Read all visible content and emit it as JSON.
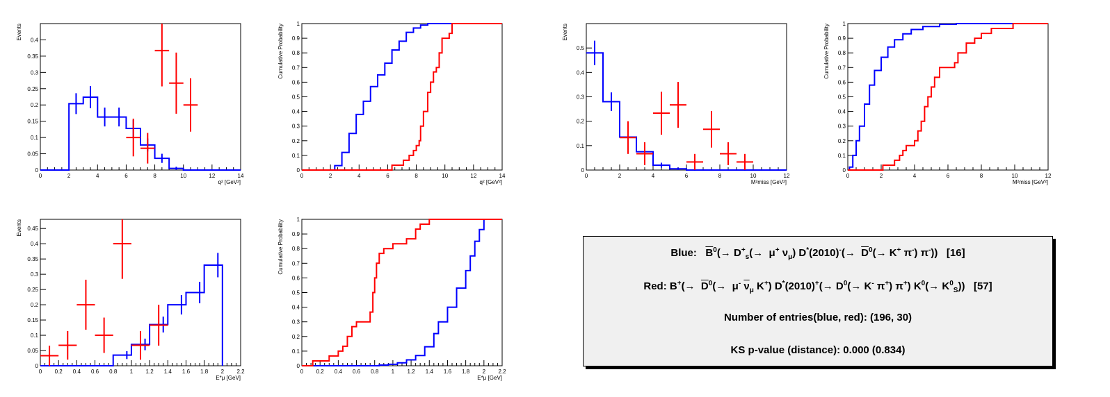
{
  "colors": {
    "blue": "#0000ff",
    "red": "#ff0000",
    "frame": "#000000",
    "box_bg": "#f0f0f0"
  },
  "chart_data": [
    {
      "type": "histogram",
      "ylabel": "Events",
      "xlabel": "q² [GeV²]",
      "xlim": [
        0,
        14
      ],
      "ylim": [
        0,
        0.45
      ],
      "xticks": [
        0,
        2,
        4,
        6,
        8,
        10,
        12,
        14
      ],
      "yticks": [
        0,
        0.05,
        0.1,
        0.15,
        0.2,
        0.25,
        0.3,
        0.35,
        0.4
      ],
      "series": [
        {
          "color": "blue",
          "style": "step",
          "bins": [
            0,
            1,
            2,
            3,
            4,
            5,
            6,
            7,
            8,
            9,
            10,
            11,
            12,
            13,
            14
          ],
          "values": [
            0,
            0,
            0.204,
            0.224,
            0.163,
            0.163,
            0.128,
            0.077,
            0.036,
            0.005,
            0,
            0,
            0,
            0
          ],
          "errors": [
            0,
            0,
            0.032,
            0.034,
            0.029,
            0.029,
            0.026,
            0.02,
            0.014,
            0.005,
            0,
            0,
            0,
            0
          ]
        },
        {
          "color": "red",
          "style": "errorbar",
          "points": [
            [
              6.5,
              0.1,
              0.058
            ],
            [
              7.5,
              0.067,
              0.047
            ],
            [
              8.5,
              0.367,
              0.11
            ],
            [
              9.5,
              0.267,
              0.094
            ],
            [
              10.5,
              0.2,
              0.082
            ]
          ],
          "xerr": 0.5
        }
      ]
    },
    {
      "type": "cdf",
      "ylabel": "Cumulative Probability",
      "xlabel": "q² [GeV²]",
      "xlim": [
        0,
        14
      ],
      "ylim": [
        0,
        1
      ],
      "xticks": [
        0,
        2,
        4,
        6,
        8,
        10,
        12,
        14
      ],
      "yticks": [
        0,
        0.1,
        0.2,
        0.3,
        0.4,
        0.5,
        0.6,
        0.7,
        0.8,
        0.9,
        1
      ],
      "series": [
        {
          "color": "blue",
          "points": [
            [
              2.1,
              0
            ],
            [
              2.3,
              0.03
            ],
            [
              2.8,
              0.12
            ],
            [
              3.3,
              0.25
            ],
            [
              3.8,
              0.38
            ],
            [
              4.3,
              0.47
            ],
            [
              4.8,
              0.57
            ],
            [
              5.3,
              0.65
            ],
            [
              5.8,
              0.73
            ],
            [
              6.3,
              0.82
            ],
            [
              6.8,
              0.88
            ],
            [
              7.3,
              0.94
            ],
            [
              7.8,
              0.97
            ],
            [
              8.3,
              0.99
            ],
            [
              8.8,
              1.0
            ],
            [
              14,
              1.0
            ]
          ]
        },
        {
          "color": "red",
          "points": [
            [
              0,
              0
            ],
            [
              6.1,
              0
            ],
            [
              6.3,
              0.033
            ],
            [
              7.1,
              0.067
            ],
            [
              7.5,
              0.1
            ],
            [
              7.8,
              0.133
            ],
            [
              8.0,
              0.167
            ],
            [
              8.2,
              0.2
            ],
            [
              8.3,
              0.3
            ],
            [
              8.5,
              0.4
            ],
            [
              8.8,
              0.53
            ],
            [
              9.0,
              0.6
            ],
            [
              9.2,
              0.67
            ],
            [
              9.4,
              0.7
            ],
            [
              9.6,
              0.8
            ],
            [
              9.8,
              0.9
            ],
            [
              10.3,
              0.933
            ],
            [
              10.5,
              1.0
            ],
            [
              14,
              1.0
            ]
          ]
        }
      ]
    },
    {
      "type": "histogram",
      "ylabel": "Events",
      "xlabel": "M²miss [GeV²]",
      "xlim": [
        0,
        12
      ],
      "ylim": [
        0,
        0.6
      ],
      "xticks": [
        0,
        2,
        4,
        6,
        8,
        10,
        12
      ],
      "yticks": [
        0,
        0.1,
        0.2,
        0.3,
        0.4,
        0.5
      ],
      "series": [
        {
          "color": "blue",
          "style": "step",
          "bins": [
            0,
            1,
            2,
            3,
            4,
            5,
            6,
            7,
            8,
            9,
            10,
            11,
            12
          ],
          "values": [
            0.48,
            0.28,
            0.135,
            0.075,
            0.02,
            0.005,
            0,
            0,
            0,
            0,
            0,
            0
          ],
          "errors": [
            0.05,
            0.038,
            0.026,
            0.02,
            0.01,
            0.005,
            0,
            0,
            0,
            0,
            0,
            0
          ]
        },
        {
          "color": "red",
          "style": "errorbar",
          "points": [
            [
              2.5,
              0.133,
              0.067
            ],
            [
              3.5,
              0.067,
              0.047
            ],
            [
              4.5,
              0.233,
              0.088
            ],
            [
              5.5,
              0.267,
              0.094
            ],
            [
              6.5,
              0.033,
              0.033
            ],
            [
              7.5,
              0.167,
              0.075
            ],
            [
              8.5,
              0.067,
              0.047
            ],
            [
              9.5,
              0.033,
              0.033
            ]
          ],
          "xerr": 0.5
        }
      ]
    },
    {
      "type": "cdf",
      "ylabel": "Cumulative Probability",
      "xlabel": "M²miss [GeV²]",
      "xlim": [
        0,
        12
      ],
      "ylim": [
        0,
        1
      ],
      "xticks": [
        0,
        2,
        4,
        6,
        8,
        10,
        12
      ],
      "yticks": [
        0,
        0.1,
        0.2,
        0.3,
        0.4,
        0.5,
        0.6,
        0.7,
        0.8,
        0.9,
        1
      ],
      "series": [
        {
          "color": "blue",
          "points": [
            [
              0,
              0
            ],
            [
              0.1,
              0.02
            ],
            [
              0.3,
              0.1
            ],
            [
              0.5,
              0.2
            ],
            [
              0.7,
              0.3
            ],
            [
              1.0,
              0.45
            ],
            [
              1.3,
              0.58
            ],
            [
              1.6,
              0.68
            ],
            [
              2.0,
              0.77
            ],
            [
              2.4,
              0.84
            ],
            [
              2.8,
              0.89
            ],
            [
              3.3,
              0.93
            ],
            [
              3.8,
              0.96
            ],
            [
              4.5,
              0.98
            ],
            [
              5.5,
              0.995
            ],
            [
              6.5,
              1.0
            ],
            [
              12,
              1.0
            ]
          ]
        },
        {
          "color": "red",
          "points": [
            [
              0,
              0
            ],
            [
              2.1,
              0
            ],
            [
              2.1,
              0.033
            ],
            [
              2.8,
              0.067
            ],
            [
              3.1,
              0.1
            ],
            [
              3.3,
              0.133
            ],
            [
              3.5,
              0.167
            ],
            [
              4.0,
              0.2
            ],
            [
              4.2,
              0.267
            ],
            [
              4.4,
              0.333
            ],
            [
              4.6,
              0.433
            ],
            [
              4.8,
              0.5
            ],
            [
              5.0,
              0.567
            ],
            [
              5.2,
              0.633
            ],
            [
              5.5,
              0.7
            ],
            [
              6.4,
              0.733
            ],
            [
              6.6,
              0.8
            ],
            [
              7.1,
              0.867
            ],
            [
              7.6,
              0.9
            ],
            [
              8.0,
              0.933
            ],
            [
              8.6,
              0.967
            ],
            [
              9.9,
              1.0
            ],
            [
              12,
              1.0
            ]
          ]
        }
      ]
    },
    {
      "type": "histogram",
      "ylabel": "Events",
      "xlabel": "E*μ [GeV]",
      "xlim": [
        0,
        2.2
      ],
      "ylim": [
        0,
        0.48
      ],
      "xticks": [
        0,
        0.2,
        0.4,
        0.6,
        0.8,
        1,
        1.2,
        1.4,
        1.6,
        1.8,
        2,
        2.2
      ],
      "yticks": [
        0,
        0.05,
        0.1,
        0.15,
        0.2,
        0.25,
        0.3,
        0.35,
        0.4,
        0.45
      ],
      "series": [
        {
          "color": "blue",
          "style": "step",
          "bins": [
            0,
            0.1,
            0.2,
            0.3,
            0.4,
            0.5,
            0.6,
            0.7,
            0.8,
            0.9,
            1.0,
            1.1,
            1.2,
            1.3,
            1.4,
            1.5,
            1.6,
            1.7,
            1.8,
            1.9,
            2.0
          ],
          "values": [
            0,
            0,
            0,
            0,
            0,
            0,
            0,
            0,
            0.035,
            0.035,
            0.07,
            0.07,
            0.135,
            0.135,
            0.2,
            0.2,
            0.24,
            0.24,
            0.33,
            0.33
          ],
          "errors": [
            0,
            0,
            0,
            0,
            0,
            0,
            0,
            0,
            0,
            0.013,
            0,
            0.019,
            0,
            0.026,
            0,
            0.032,
            0,
            0.035,
            0,
            0.04
          ]
        },
        {
          "color": "red",
          "style": "errorbar",
          "points": [
            [
              0.1,
              0.033,
              0.033
            ],
            [
              0.3,
              0.067,
              0.047
            ],
            [
              0.5,
              0.2,
              0.082
            ],
            [
              0.7,
              0.1,
              0.058
            ],
            [
              0.9,
              0.4,
              0.115
            ],
            [
              1.1,
              0.067,
              0.047
            ],
            [
              1.3,
              0.133,
              0.067
            ]
          ],
          "xerr": 0.1
        }
      ]
    },
    {
      "type": "cdf",
      "ylabel": "Cumulative Probability",
      "xlabel": "E*μ [GeV]",
      "xlim": [
        0,
        2.2
      ],
      "ylim": [
        0,
        1
      ],
      "xticks": [
        0,
        0.2,
        0.4,
        0.6,
        0.8,
        1,
        1.2,
        1.4,
        1.6,
        1.8,
        2,
        2.2
      ],
      "yticks": [
        0,
        0.1,
        0.2,
        0.3,
        0.4,
        0.5,
        0.6,
        0.7,
        0.8,
        0.9,
        1
      ],
      "series": [
        {
          "color": "blue",
          "points": [
            [
              0,
              0
            ],
            [
              0.8,
              0
            ],
            [
              0.85,
              0.005
            ],
            [
              0.95,
              0.01
            ],
            [
              1.05,
              0.02
            ],
            [
              1.15,
              0.04
            ],
            [
              1.25,
              0.07
            ],
            [
              1.35,
              0.13
            ],
            [
              1.45,
              0.22
            ],
            [
              1.5,
              0.3
            ],
            [
              1.6,
              0.4
            ],
            [
              1.7,
              0.53
            ],
            [
              1.8,
              0.65
            ],
            [
              1.85,
              0.75
            ],
            [
              1.9,
              0.85
            ],
            [
              1.95,
              0.93
            ],
            [
              2.0,
              1.0
            ]
          ]
        },
        {
          "color": "red",
          "points": [
            [
              0,
              0
            ],
            [
              0.12,
              0
            ],
            [
              0.12,
              0.033
            ],
            [
              0.3,
              0.067
            ],
            [
              0.4,
              0.1
            ],
            [
              0.45,
              0.133
            ],
            [
              0.5,
              0.2
            ],
            [
              0.55,
              0.267
            ],
            [
              0.6,
              0.3
            ],
            [
              0.75,
              0.367
            ],
            [
              0.78,
              0.5
            ],
            [
              0.8,
              0.6
            ],
            [
              0.82,
              0.7
            ],
            [
              0.85,
              0.767
            ],
            [
              0.9,
              0.8
            ],
            [
              1.0,
              0.833
            ],
            [
              1.15,
              0.867
            ],
            [
              1.25,
              0.933
            ],
            [
              1.3,
              0.967
            ],
            [
              1.4,
              1.0
            ],
            [
              2.2,
              1.0
            ]
          ]
        }
      ]
    }
  ],
  "legend_box": {
    "blue_label": "Blue:",
    "red_label": "Red:",
    "blue_decay": "B̄⁰(→ D_s⁺(→ μ⁺ ν_μ) D*(2010)⁻(→ D̄⁰(→ K⁺ π⁻) π⁻))   [16]",
    "red_decay": "B⁺(→ D̄⁰(→ μ⁻ ν̄_μ K⁺) D*(2010)⁺(→ D⁰(→ K⁻ π⁺) π⁺) K⁰(→ K_S⁰))   [57]",
    "entries": "Number of entries(blue, red): (196, 30)",
    "ks": "KS p-value (distance): 0.000 (0.834)"
  }
}
